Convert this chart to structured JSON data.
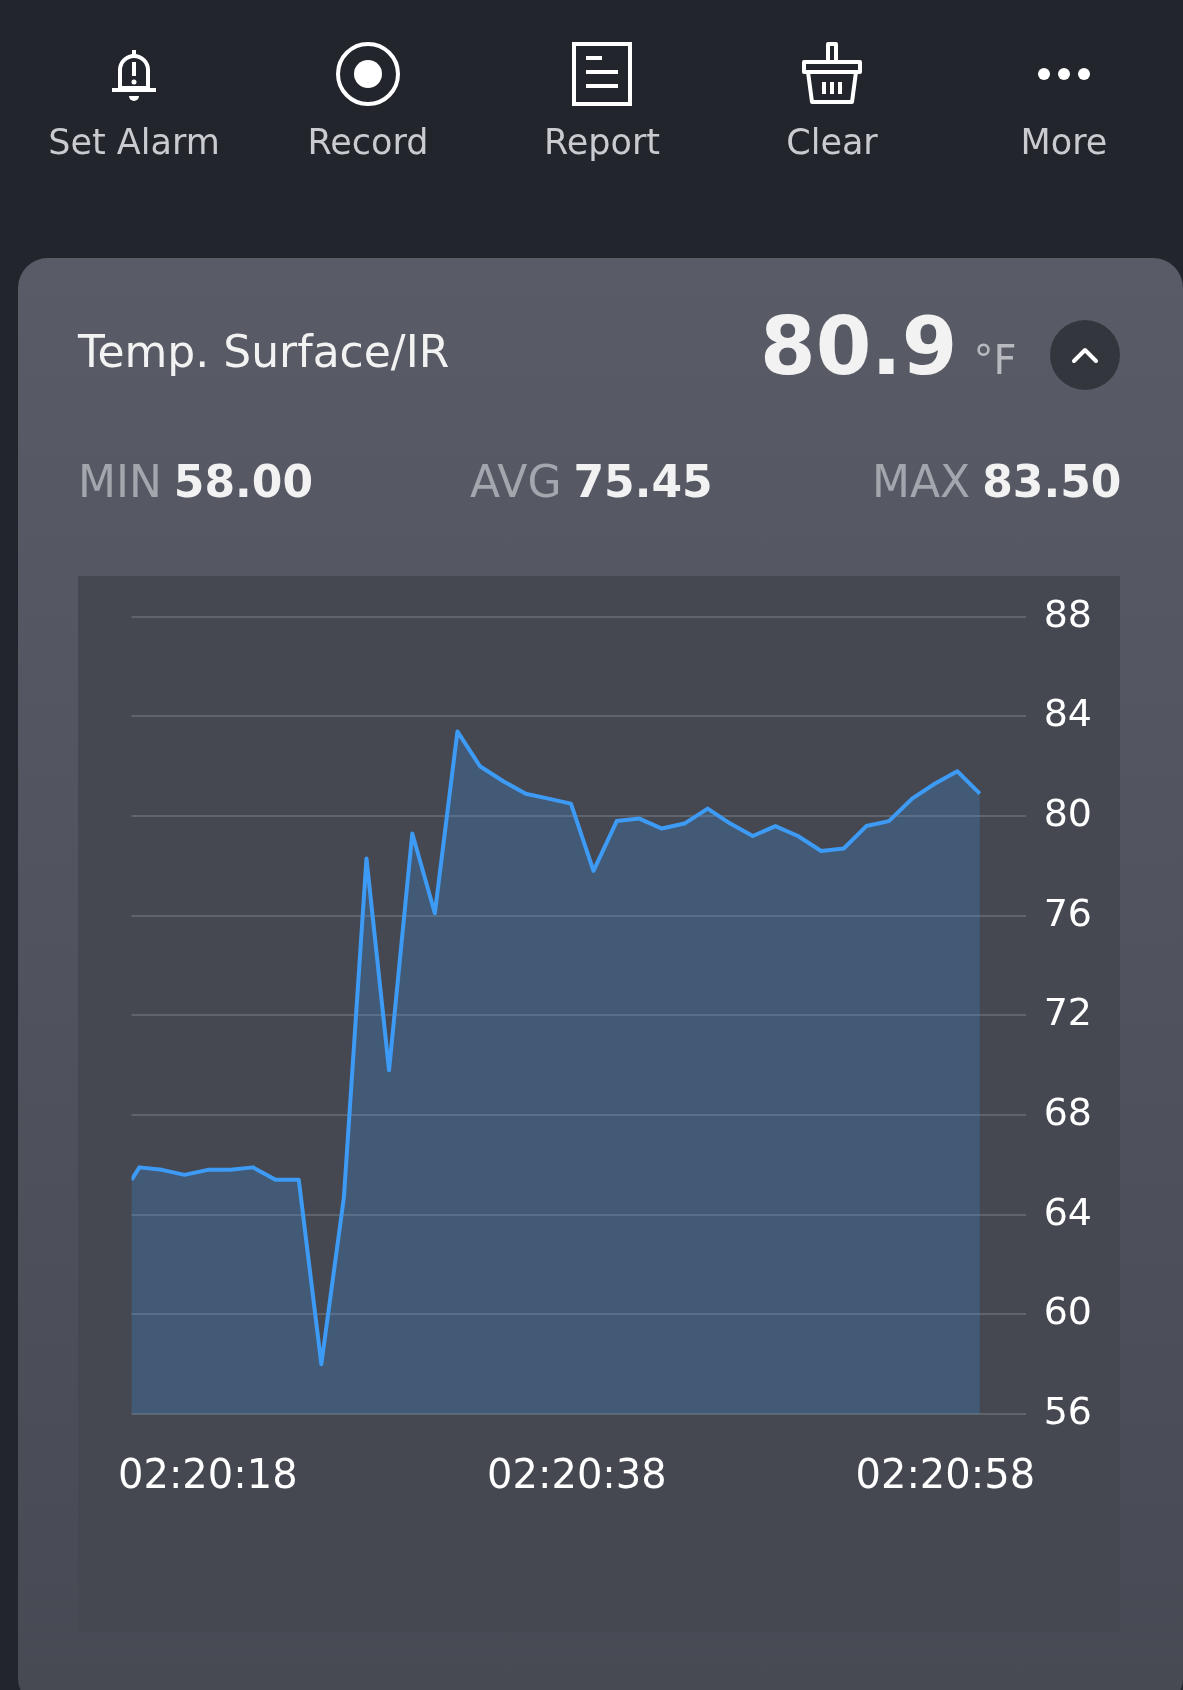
{
  "chart_data": {
    "type": "area",
    "title": "Temp. Surface/IR",
    "subtitle": "80.9 °F",
    "annotations": [
      "Set Alarm",
      "Record",
      "Report",
      "Clear",
      "More",
      "MIN 58.00",
      "AVG 75.45",
      "MAX 83.50"
    ],
    "x": [
      2.33718,
      2.3373,
      2.33764,
      2.33798,
      2.33833,
      2.33867,
      2.33901,
      2.33935,
      2.3397,
      2.34004,
      2.34038,
      2.34072,
      2.34106,
      2.34141,
      2.34175,
      2.34209,
      2.34243,
      2.34278,
      2.34312,
      2.34346,
      2.3438,
      2.34414,
      2.34449,
      2.34483,
      2.34517,
      2.34551,
      2.34586,
      2.3462,
      2.34654,
      2.34688,
      2.34722,
      2.34757,
      2.34791,
      2.34825,
      2.34859,
      2.34894,
      2.34928,
      2.34962,
      2.34996
    ],
    "series": [
      {
        "color": "#3d9bf5",
        "values": [
          65.4,
          65.9,
          65.8,
          65.6,
          65.8,
          65.8,
          65.9,
          65.4,
          65.4,
          58.0,
          64.7,
          78.3,
          69.8,
          79.3,
          76.1,
          83.4,
          82.0,
          81.4,
          80.9,
          80.7,
          80.5,
          77.8,
          79.8,
          79.9,
          79.5,
          79.7,
          80.3,
          79.7,
          79.2,
          79.6,
          79.2,
          78.6,
          78.7,
          79.6,
          79.8,
          80.7,
          81.3,
          81.8,
          80.9
        ]
      }
    ],
    "xlim": [
      2.33718,
      2.35065
    ],
    "xticks": [
      {
        "value": 2.33833,
        "label": "02:20:18"
      },
      {
        "value": 2.34389,
        "label": "02:20:38"
      },
      {
        "value": 2.34944,
        "label": "02:20:58"
      }
    ],
    "ylim": [
      56,
      88
    ],
    "yticks": [
      56,
      60,
      64,
      68,
      72,
      76,
      80,
      84,
      88
    ],
    "grid": "y",
    "marker": "none",
    "line_style": "solid"
  }
}
